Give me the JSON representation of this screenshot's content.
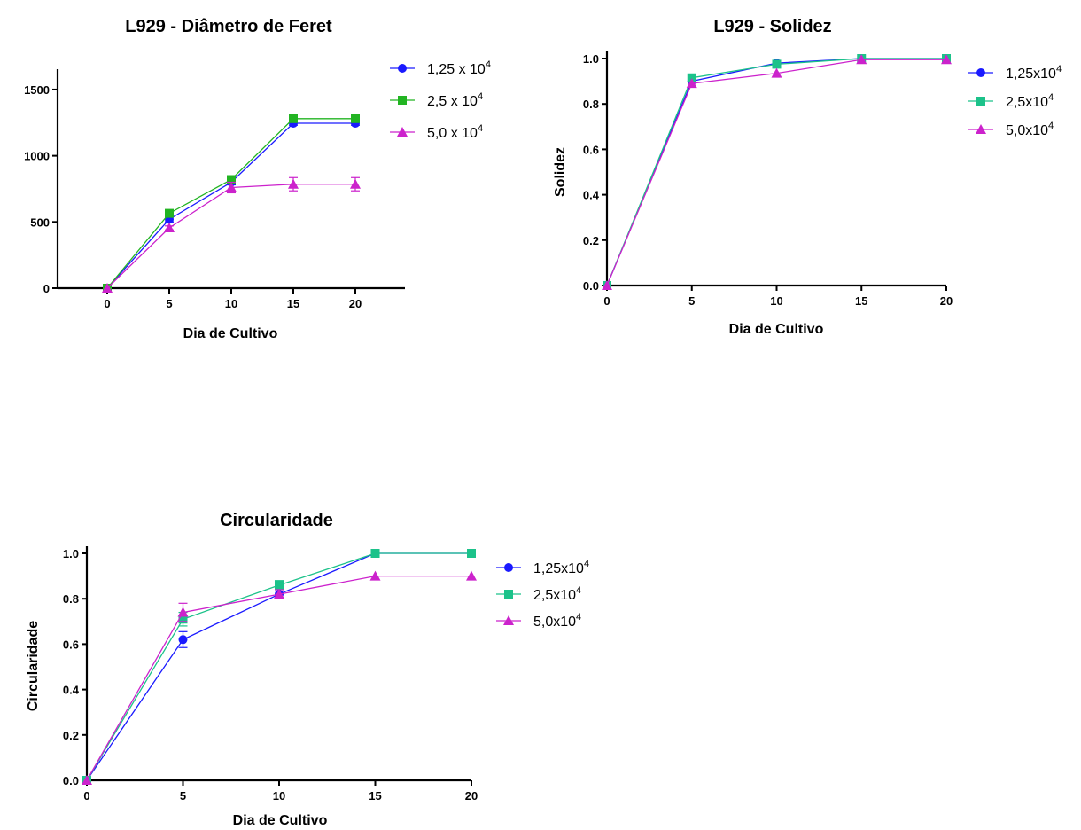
{
  "colors": {
    "series_1": "#1a1aff",
    "series_2_feret": "#22b422",
    "series_2": "#1cc28a",
    "series_3": "#cc22cc"
  },
  "chart_data": [
    {
      "type": "line",
      "title": "L929 -  Diâmetro de Feret",
      "xlabel": "Dia de Cultivo",
      "ylabel": "",
      "xlim": [
        -4,
        24
      ],
      "ylim": [
        0,
        1600
      ],
      "xticks": [
        "0",
        "5",
        "10",
        "15",
        "20"
      ],
      "yticks": [
        "0",
        "500",
        "1000",
        "1500"
      ],
      "x": [
        0,
        5,
        10,
        15,
        20
      ],
      "series": [
        {
          "name_main": "1,25 x 10",
          "name_sup": "4",
          "marker": "circle",
          "color": "#1a1aff",
          "values": [
            0,
            520,
            800,
            1245,
            1245
          ],
          "err": [
            0,
            20,
            20,
            15,
            15
          ]
        },
        {
          "name_main": "2,5 x 10",
          "name_sup": "4",
          "marker": "square",
          "color": "#22b422",
          "values": [
            0,
            565,
            820,
            1280,
            1280
          ],
          "err": [
            0,
            15,
            15,
            10,
            10
          ]
        },
        {
          "name_main": "5,0 x 10",
          "name_sup": "4",
          "marker": "triangle",
          "color": "#cc22cc",
          "values": [
            0,
            455,
            760,
            785,
            785
          ],
          "err": [
            0,
            15,
            40,
            50,
            50
          ]
        }
      ],
      "grid": false,
      "legend": "right"
    },
    {
      "type": "line",
      "title": "L929 -  Solidez",
      "xlabel": "Dia de Cultivo",
      "ylabel": "Solidez",
      "xlim": [
        0,
        20
      ],
      "ylim": [
        0,
        1.0
      ],
      "xticks": [
        "0",
        "5",
        "10",
        "15",
        "20"
      ],
      "yticks": [
        "0.0",
        "0.2",
        "0.4",
        "0.6",
        "0.8",
        "1.0"
      ],
      "x": [
        0,
        5,
        10,
        15,
        20
      ],
      "series": [
        {
          "name_main": "1,25x10",
          "name_sup": "4",
          "marker": "circle",
          "color": "#1a1aff",
          "values": [
            0,
            0.9,
            0.98,
            1.0,
            1.0
          ],
          "err": [
            0,
            0,
            0,
            0,
            0
          ]
        },
        {
          "name_main": "2,5x10",
          "name_sup": "4",
          "marker": "square",
          "color": "#1cc28a",
          "values": [
            0,
            0.915,
            0.975,
            1.0,
            1.0
          ],
          "err": [
            0,
            0,
            0,
            0,
            0
          ]
        },
        {
          "name_main": "5,0x10",
          "name_sup": "4",
          "marker": "triangle",
          "color": "#cc22cc",
          "values": [
            0,
            0.89,
            0.935,
            0.995,
            0.995
          ],
          "err": [
            0,
            0,
            0,
            0,
            0
          ]
        }
      ],
      "grid": false,
      "legend": "right"
    },
    {
      "type": "line",
      "title": "Circularidade",
      "xlabel": "Dia de Cultivo",
      "ylabel": "Circularidade",
      "xlim": [
        0,
        20
      ],
      "ylim": [
        0,
        1.0
      ],
      "xticks": [
        "0",
        "5",
        "10",
        "15",
        "20"
      ],
      "yticks": [
        "0.0",
        "0.2",
        "0.4",
        "0.6",
        "0.8",
        "1.0"
      ],
      "x": [
        0,
        5,
        10,
        15,
        20
      ],
      "series": [
        {
          "name_main": "1,25x10",
          "name_sup": "4",
          "marker": "circle",
          "color": "#1a1aff",
          "values": [
            0,
            0.62,
            0.82,
            1.0,
            1.0
          ],
          "err": [
            0,
            0.035,
            0.02,
            0,
            0
          ]
        },
        {
          "name_main": "2,5x10",
          "name_sup": "4",
          "marker": "square",
          "color": "#1cc28a",
          "values": [
            0,
            0.71,
            0.86,
            1.0,
            1.0
          ],
          "err": [
            0,
            0.03,
            0.02,
            0,
            0
          ]
        },
        {
          "name_main": "5,0x10",
          "name_sup": "4",
          "marker": "triangle",
          "color": "#cc22cc",
          "values": [
            0,
            0.74,
            0.82,
            0.9,
            0.9
          ],
          "err": [
            0,
            0.04,
            0.02,
            0,
            0
          ]
        }
      ],
      "grid": false,
      "legend": "right"
    }
  ]
}
